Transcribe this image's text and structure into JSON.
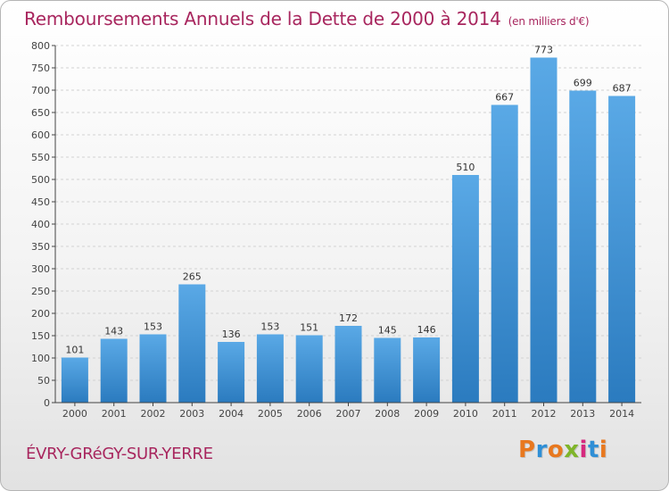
{
  "title": "Remboursements Annuels de la Dette de 2000 à 2014",
  "subtitle": "(en milliers d'€)",
  "city": "ÉVRY-GRéGY-SUR-YERRE",
  "logo": {
    "text": "Proxiti",
    "letter_colors": [
      "#e8781f",
      "#2f8fd6",
      "#e8781f",
      "#7fb52a",
      "#d6297e",
      "#2f8fd6",
      "#e8781f"
    ]
  },
  "colors": {
    "title": "#a8265e",
    "bar_top": "#5aa9e6",
    "bar_bottom": "#2b7bbf",
    "value_label": "#333333",
    "axis": "#444444"
  },
  "chart_data": {
    "type": "bar",
    "title": "Remboursements Annuels de la Dette de 2000 à 2014",
    "subtitle": "(en milliers d'€)",
    "xlabel": "",
    "ylabel": "",
    "categories": [
      "2000",
      "2001",
      "2002",
      "2003",
      "2004",
      "2005",
      "2006",
      "2007",
      "2008",
      "2009",
      "2010",
      "2011",
      "2012",
      "2013",
      "2014"
    ],
    "values": [
      101,
      143,
      153,
      265,
      136,
      153,
      151,
      172,
      145,
      146,
      510,
      667,
      773,
      699,
      687
    ],
    "ylim": [
      0,
      800
    ],
    "yticks": [
      0,
      50,
      100,
      150,
      200,
      250,
      300,
      350,
      400,
      450,
      500,
      550,
      600,
      650,
      700,
      750,
      800
    ],
    "grid": true,
    "legend": "none"
  }
}
